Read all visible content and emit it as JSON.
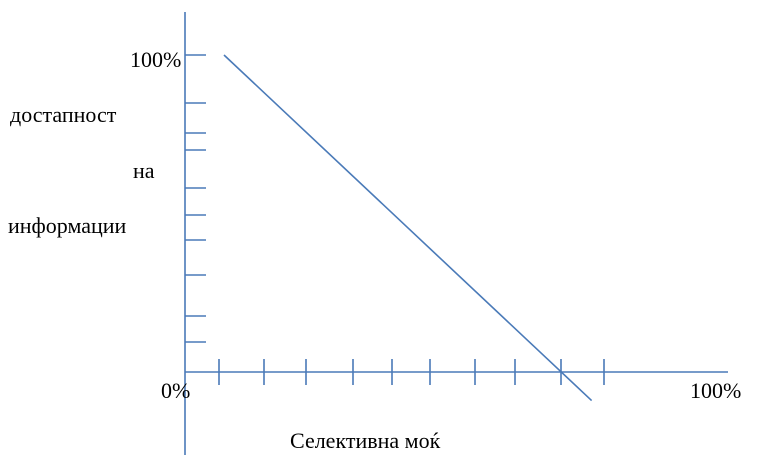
{
  "colors": {
    "line": "#4a7ab8",
    "axis": "#4a7ab8",
    "text": "#000000",
    "background": "#ffffff"
  },
  "chart_data": {
    "type": "line",
    "title": "",
    "xlabel": "Селективна моќ",
    "ylabel_lines": [
      "достапност",
      "на",
      "информации"
    ],
    "y_tick_labels": {
      "top": "100%",
      "bottom": "0%"
    },
    "x_tick_labels": {
      "right": "100%"
    },
    "grid": false,
    "series": [
      {
        "points": [
          {
            "x": 7,
            "y": 100
          },
          {
            "x": 73,
            "y": -9
          }
        ]
      }
    ]
  }
}
